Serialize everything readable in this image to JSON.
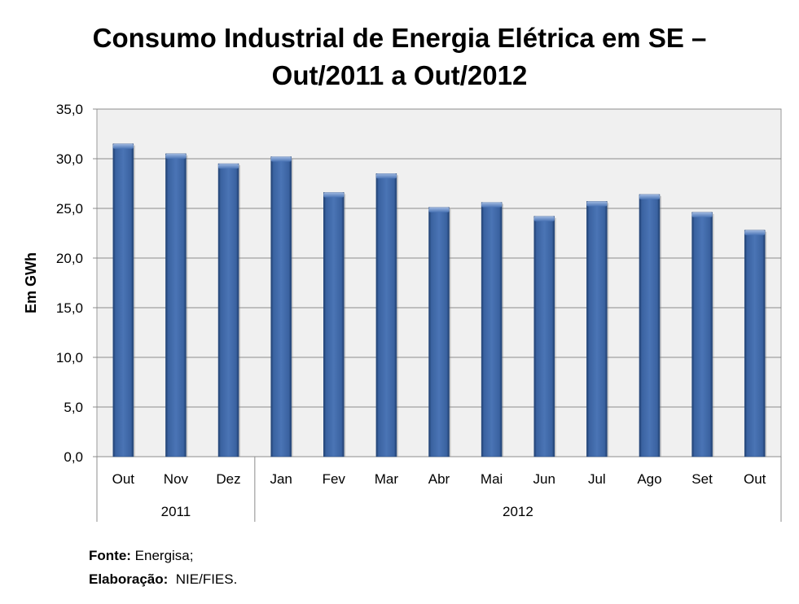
{
  "chart_data": {
    "type": "bar",
    "title_line1": "Consumo Industrial de Energia Elétrica em SE –",
    "title_line2": "Out/2011 a Out/2012",
    "ylabel": "Em GWh",
    "xlabel": "",
    "ylim": [
      0,
      35
    ],
    "yticks": [
      0,
      5,
      10,
      15,
      20,
      25,
      30,
      35
    ],
    "ytick_labels": [
      "0,0",
      "5,0",
      "10,0",
      "15,0",
      "20,0",
      "25,0",
      "30,0",
      "35,0"
    ],
    "grid": true,
    "categories": [
      "Out",
      "Nov",
      "Dez",
      "Jan",
      "Fev",
      "Mar",
      "Abr",
      "Mai",
      "Jun",
      "Jul",
      "Ago",
      "Set",
      "Out"
    ],
    "values": [
      31.5,
      30.5,
      29.5,
      30.2,
      26.6,
      28.5,
      25.1,
      25.6,
      24.2,
      25.7,
      26.4,
      24.6,
      22.8
    ],
    "groups": [
      {
        "label": "2011",
        "count": 3
      },
      {
        "label": "2012",
        "count": 10
      }
    ],
    "bar_color": "#3b64a0",
    "plot_background": "#f0f0f0"
  },
  "source": {
    "fonte_label": "Fonte:",
    "fonte_value": " Energisa;",
    "elab_label": "Elaboração:",
    "elab_value": "  NIE/FIES."
  }
}
